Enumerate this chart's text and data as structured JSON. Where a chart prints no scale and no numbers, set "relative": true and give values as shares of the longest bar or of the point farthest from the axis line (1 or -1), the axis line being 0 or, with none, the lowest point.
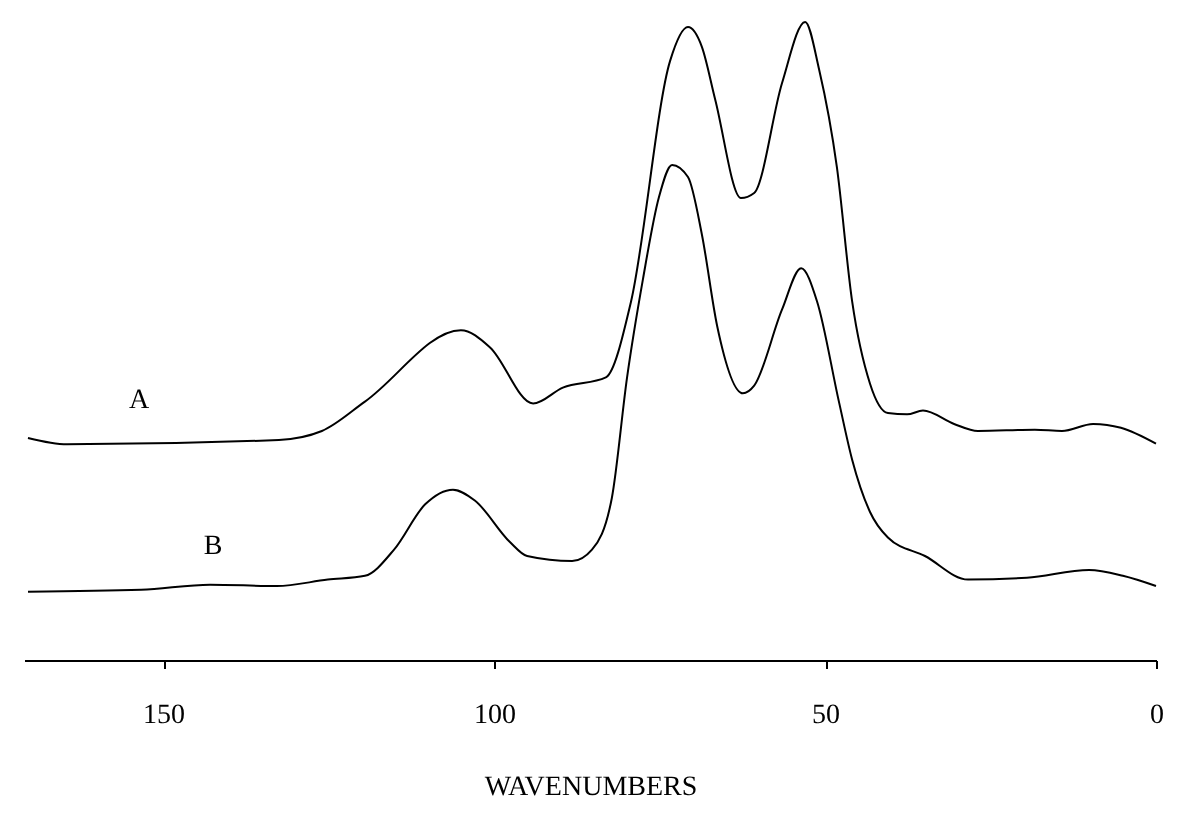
{
  "chart_data": {
    "type": "line",
    "xlabel": "WAVENUMBERS",
    "relative": true,
    "xlim": [
      171,
      0
    ],
    "xticks": [
      150,
      100,
      50,
      0
    ],
    "grid": false,
    "legend": false,
    "series": [
      {
        "name": "A",
        "color": "#000000",
        "x": [
          170.4,
          164.5,
          132.5,
          126.0,
          119.5,
          105.0,
          100.6,
          94.1,
          89.6,
          83.1,
          79.3,
          73.4,
          70.7,
          68.6,
          66.6,
          62.7,
          60.7,
          56.5,
          53.0,
          50.9,
          48.2,
          45.9,
          43.2,
          40.5,
          37.6,
          35.2,
          30.5,
          26.9,
          18.3,
          14.2,
          9.5,
          5.3,
          0
        ],
        "values": [
          0.348,
          0.338,
          0.345,
          0.359,
          0.405,
          0.517,
          0.49,
          0.402,
          0.427,
          0.443,
          0.562,
          0.939,
          0.992,
          0.961,
          0.879,
          0.724,
          0.732,
          0.904,
          1.0,
          0.926,
          0.772,
          0.562,
          0.433,
          0.387,
          0.385,
          0.391,
          0.37,
          0.359,
          0.361,
          0.359,
          0.37,
          0.364,
          0.339
        ]
      },
      {
        "name": "B",
        "color": "#000000",
        "x": [
          170.4,
          153.3,
          142.9,
          132.8,
          125.1,
          119.5,
          115.1,
          110.4,
          106.2,
          102.9,
          97.6,
          95.0,
          88.2,
          85.2,
          82.2,
          79.9,
          77.5,
          75.1,
          73.1,
          70.7,
          68.6,
          66.3,
          62.4,
          60.7,
          56.5,
          53.6,
          51.2,
          47.9,
          45.9,
          43.2,
          40.5,
          34.9,
          28.4,
          19.5,
          10.1,
          5.0,
          0
        ],
        "values": [
          0.107,
          0.11,
          0.118,
          0.116,
          0.126,
          0.132,
          0.173,
          0.244,
          0.267,
          0.25,
          0.185,
          0.163,
          0.155,
          0.173,
          0.254,
          0.443,
          0.597,
          0.725,
          0.776,
          0.757,
          0.667,
          0.524,
          0.418,
          0.43,
          0.549,
          0.614,
          0.562,
          0.405,
          0.314,
          0.232,
          0.192,
          0.163,
          0.126,
          0.129,
          0.141,
          0.132,
          0.116
        ]
      }
    ]
  }
}
